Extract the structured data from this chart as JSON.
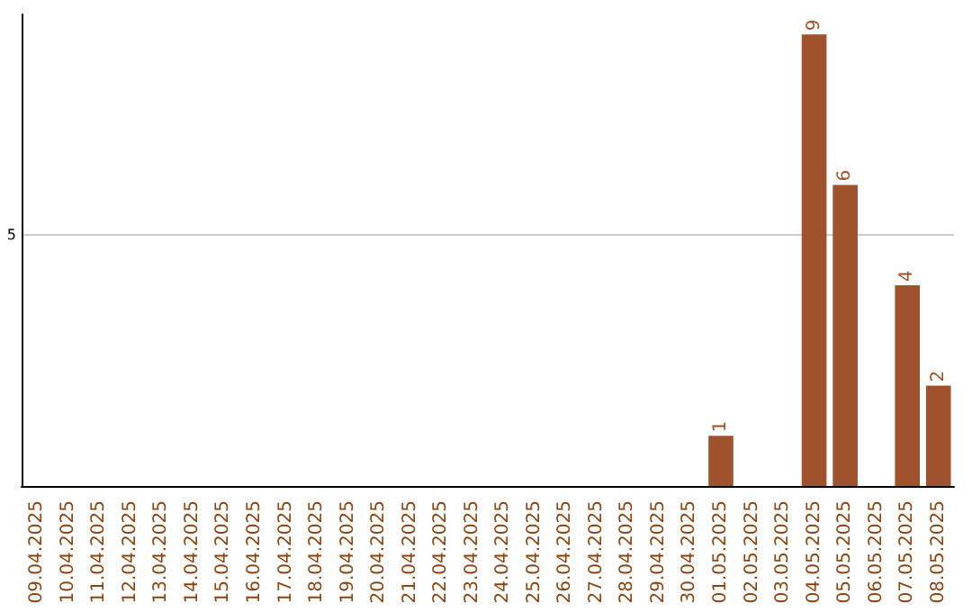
{
  "chart_data": {
    "type": "bar",
    "categories": [
      "09.04.2025",
      "10.04.2025",
      "11.04.2025",
      "12.04.2025",
      "13.04.2025",
      "14.04.2025",
      "15.04.2025",
      "16.04.2025",
      "17.04.2025",
      "18.04.2025",
      "19.04.2025",
      "20.04.2025",
      "21.04.2025",
      "22.04.2025",
      "23.04.2025",
      "24.04.2025",
      "25.04.2025",
      "26.04.2025",
      "27.04.2025",
      "28.04.2025",
      "29.04.2025",
      "30.04.2025",
      "01.05.2025",
      "02.05.2025",
      "03.05.2025",
      "04.05.2025",
      "05.05.2025",
      "06.05.2025",
      "07.05.2025",
      "08.05.2025"
    ],
    "values": [
      null,
      null,
      null,
      null,
      null,
      null,
      null,
      null,
      null,
      null,
      null,
      null,
      null,
      null,
      null,
      null,
      null,
      null,
      null,
      null,
      null,
      null,
      1,
      null,
      null,
      9,
      6,
      null,
      4,
      2
    ],
    "data_labels": true,
    "color": "#a0522d",
    "ylim": [
      0,
      9.4
    ],
    "yticks": [
      5
    ],
    "grid": "y"
  }
}
